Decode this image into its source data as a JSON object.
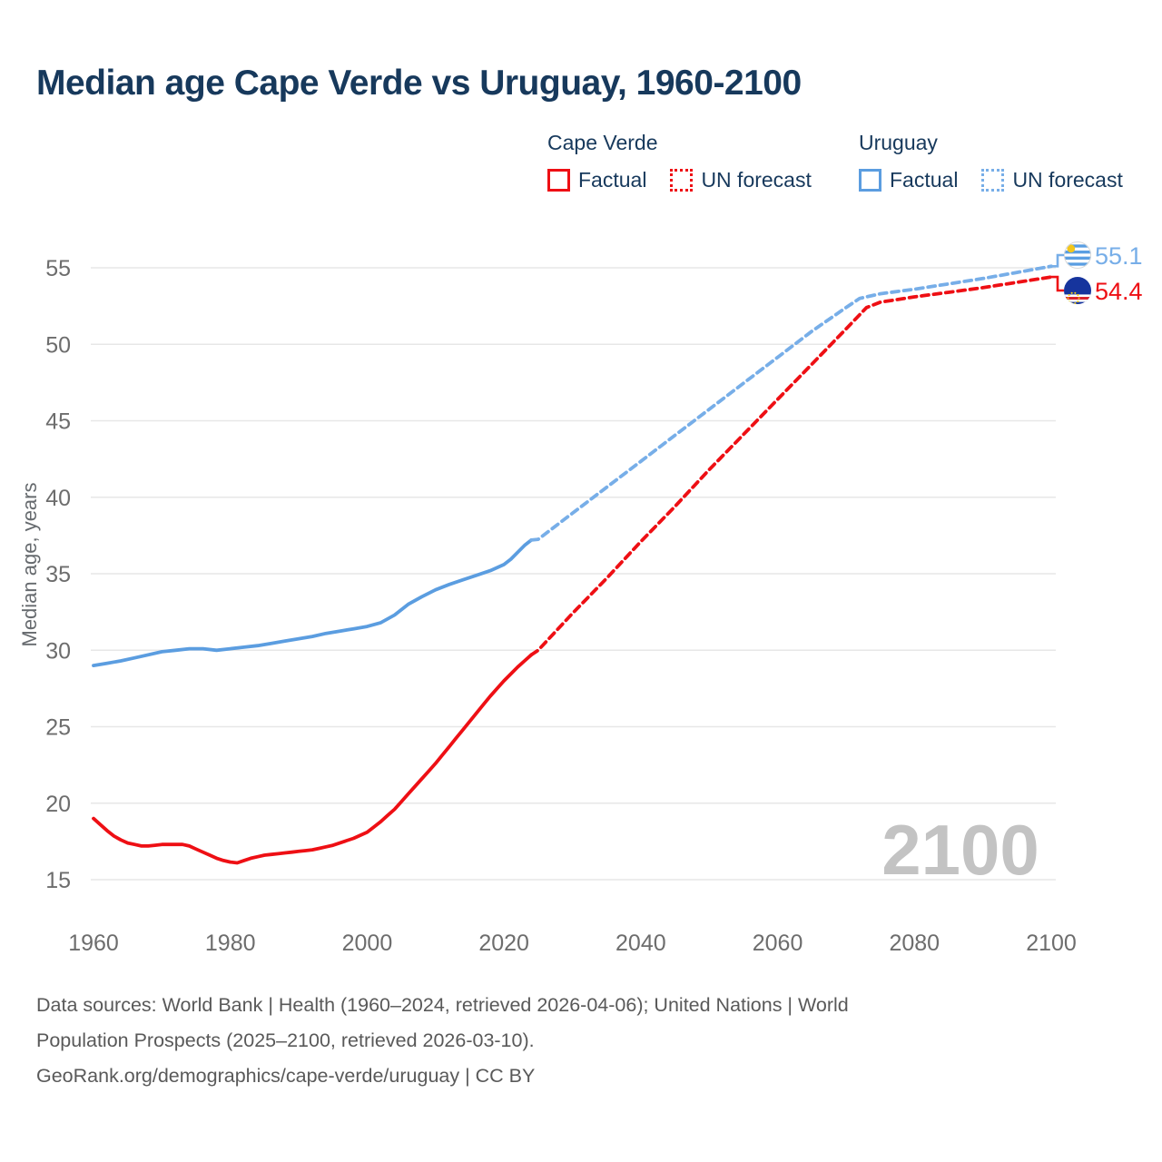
{
  "header": {
    "title": "Median age Cape Verde vs Uruguay, 1960-2100"
  },
  "legend": {
    "groups": [
      {
        "name": "Cape Verde",
        "items": [
          {
            "label": "Factual"
          },
          {
            "label": "UN forecast"
          }
        ]
      },
      {
        "name": "Uruguay",
        "items": [
          {
            "label": "Factual"
          },
          {
            "label": "UN forecast"
          }
        ]
      }
    ]
  },
  "colors": {
    "navy": "#17395c",
    "cape_verde_red": "#ee0f14",
    "uruguay_blue": "#5b9de0",
    "uruguay_forecast_blue": "#77aee8",
    "gridline": "#e7e7e7",
    "tick_text": "#6d6d6d",
    "watermark_gray": "#c3c3c3",
    "footer_gray": "#595959",
    "uruguay_flag_blue": "#5a9ee2",
    "uruguay_flag_sun": "#f3c61b",
    "cape_verde_flag_blue": "#16349d",
    "cape_verde_flag_red": "#d9232e",
    "cape_verde_flag_star": "#f7d012"
  },
  "watermark": "2100",
  "end_labels": {
    "uruguay": {
      "value": "55.1",
      "flag": "uruguay-flag"
    },
    "cape_verde": {
      "value": "54.4",
      "flag": "cape-verde-flag"
    }
  },
  "footer": {
    "lines": [
      "Data sources: World Bank | Health (1960–2024, retrieved 2026-04-06); United Nations | World",
      "Population Prospects (2025–2100, retrieved 2026-03-10).",
      "GeoRank.org/demographics/cape-verde/uruguay | CC BY"
    ]
  },
  "chart_data": {
    "type": "line",
    "title": "Median age Cape Verde vs Uruguay, 1960-2100",
    "xlabel": "",
    "ylabel": "Median age, years",
    "xlim": [
      1960,
      2100
    ],
    "ylim": [
      15,
      55
    ],
    "xticks": [
      1960,
      1980,
      2000,
      2020,
      2040,
      2060,
      2080,
      2100
    ],
    "yticks": [
      15,
      20,
      25,
      30,
      35,
      40,
      45,
      50,
      55
    ],
    "grid": "horizontal-only",
    "legend_position": "top-right",
    "annotations": {
      "watermark": "2100",
      "end_values": {
        "Uruguay": 55.1,
        "Cape Verde": 54.4
      }
    },
    "series": [
      {
        "name": "Cape Verde — Factual",
        "style": "solid",
        "color": "#ee0f14",
        "points": [
          [
            1960,
            19.0
          ],
          [
            1961,
            18.6
          ],
          [
            1962,
            18.2
          ],
          [
            1963,
            17.85
          ],
          [
            1964,
            17.6
          ],
          [
            1965,
            17.4
          ],
          [
            1966,
            17.3
          ],
          [
            1967,
            17.2
          ],
          [
            1968,
            17.2
          ],
          [
            1969,
            17.25
          ],
          [
            1970,
            17.3
          ],
          [
            1971,
            17.3
          ],
          [
            1972,
            17.3
          ],
          [
            1973,
            17.3
          ],
          [
            1974,
            17.2
          ],
          [
            1975,
            17.0
          ],
          [
            1976,
            16.8
          ],
          [
            1977,
            16.6
          ],
          [
            1978,
            16.4
          ],
          [
            1979,
            16.25
          ],
          [
            1980,
            16.15
          ],
          [
            1981,
            16.1
          ],
          [
            1982,
            16.25
          ],
          [
            1983,
            16.4
          ],
          [
            1984,
            16.5
          ],
          [
            1985,
            16.6
          ],
          [
            1986,
            16.65
          ],
          [
            1987,
            16.7
          ],
          [
            1988,
            16.75
          ],
          [
            1989,
            16.8
          ],
          [
            1990,
            16.85
          ],
          [
            1991,
            16.9
          ],
          [
            1992,
            16.95
          ],
          [
            1993,
            17.05
          ],
          [
            1994,
            17.15
          ],
          [
            1995,
            17.25
          ],
          [
            1996,
            17.4
          ],
          [
            1997,
            17.55
          ],
          [
            1998,
            17.7
          ],
          [
            1999,
            17.9
          ],
          [
            2000,
            18.1
          ],
          [
            2001,
            18.45
          ],
          [
            2002,
            18.8
          ],
          [
            2003,
            19.2
          ],
          [
            2004,
            19.6
          ],
          [
            2005,
            20.1
          ],
          [
            2006,
            20.6
          ],
          [
            2007,
            21.1
          ],
          [
            2008,
            21.6
          ],
          [
            2009,
            22.1
          ],
          [
            2010,
            22.6
          ],
          [
            2011,
            23.15
          ],
          [
            2012,
            23.7
          ],
          [
            2013,
            24.25
          ],
          [
            2014,
            24.8
          ],
          [
            2015,
            25.35
          ],
          [
            2016,
            25.9
          ],
          [
            2017,
            26.45
          ],
          [
            2018,
            27.0
          ],
          [
            2019,
            27.5
          ],
          [
            2020,
            28.0
          ],
          [
            2021,
            28.45
          ],
          [
            2022,
            28.9
          ],
          [
            2023,
            29.3
          ],
          [
            2024,
            29.7
          ]
        ]
      },
      {
        "name": "Cape Verde — UN forecast",
        "style": "dashed",
        "color": "#ee0f14",
        "points": [
          [
            2024,
            29.7
          ],
          [
            2025,
            30.0
          ],
          [
            2030,
            32.4
          ],
          [
            2035,
            34.7
          ],
          [
            2040,
            37.1
          ],
          [
            2045,
            39.4
          ],
          [
            2050,
            41.8
          ],
          [
            2055,
            44.1
          ],
          [
            2060,
            46.4
          ],
          [
            2065,
            48.7
          ],
          [
            2070,
            51.0
          ],
          [
            2073,
            52.4
          ],
          [
            2075,
            52.75
          ],
          [
            2080,
            53.1
          ],
          [
            2085,
            53.4
          ],
          [
            2090,
            53.7
          ],
          [
            2095,
            54.05
          ],
          [
            2100,
            54.4
          ]
        ]
      },
      {
        "name": "Uruguay — Factual",
        "style": "solid",
        "color": "#5b9de0",
        "points": [
          [
            1960,
            29.0
          ],
          [
            1962,
            29.15
          ],
          [
            1964,
            29.3
          ],
          [
            1966,
            29.5
          ],
          [
            1968,
            29.7
          ],
          [
            1970,
            29.9
          ],
          [
            1972,
            30.0
          ],
          [
            1974,
            30.1
          ],
          [
            1976,
            30.1
          ],
          [
            1978,
            30.0
          ],
          [
            1980,
            30.1
          ],
          [
            1982,
            30.2
          ],
          [
            1984,
            30.3
          ],
          [
            1986,
            30.45
          ],
          [
            1988,
            30.6
          ],
          [
            1990,
            30.75
          ],
          [
            1992,
            30.9
          ],
          [
            1994,
            31.1
          ],
          [
            1996,
            31.25
          ],
          [
            1998,
            31.4
          ],
          [
            2000,
            31.55
          ],
          [
            2002,
            31.8
          ],
          [
            2004,
            32.3
          ],
          [
            2006,
            33.0
          ],
          [
            2008,
            33.5
          ],
          [
            2010,
            33.95
          ],
          [
            2012,
            34.3
          ],
          [
            2014,
            34.6
          ],
          [
            2016,
            34.9
          ],
          [
            2018,
            35.2
          ],
          [
            2019,
            35.4
          ],
          [
            2020,
            35.6
          ],
          [
            2021,
            35.95
          ],
          [
            2022,
            36.4
          ],
          [
            2023,
            36.85
          ],
          [
            2024,
            37.2
          ]
        ]
      },
      {
        "name": "Uruguay — UN forecast",
        "style": "dashed",
        "color": "#77aee8",
        "points": [
          [
            2024,
            37.2
          ],
          [
            2025,
            37.25
          ],
          [
            2030,
            38.95
          ],
          [
            2035,
            40.65
          ],
          [
            2040,
            42.35
          ],
          [
            2045,
            44.05
          ],
          [
            2050,
            45.75
          ],
          [
            2055,
            47.45
          ],
          [
            2060,
            49.15
          ],
          [
            2065,
            50.85
          ],
          [
            2070,
            52.4
          ],
          [
            2072,
            53.0
          ],
          [
            2075,
            53.3
          ],
          [
            2080,
            53.6
          ],
          [
            2085,
            53.95
          ],
          [
            2090,
            54.3
          ],
          [
            2095,
            54.7
          ],
          [
            2100,
            55.1
          ]
        ]
      }
    ]
  }
}
